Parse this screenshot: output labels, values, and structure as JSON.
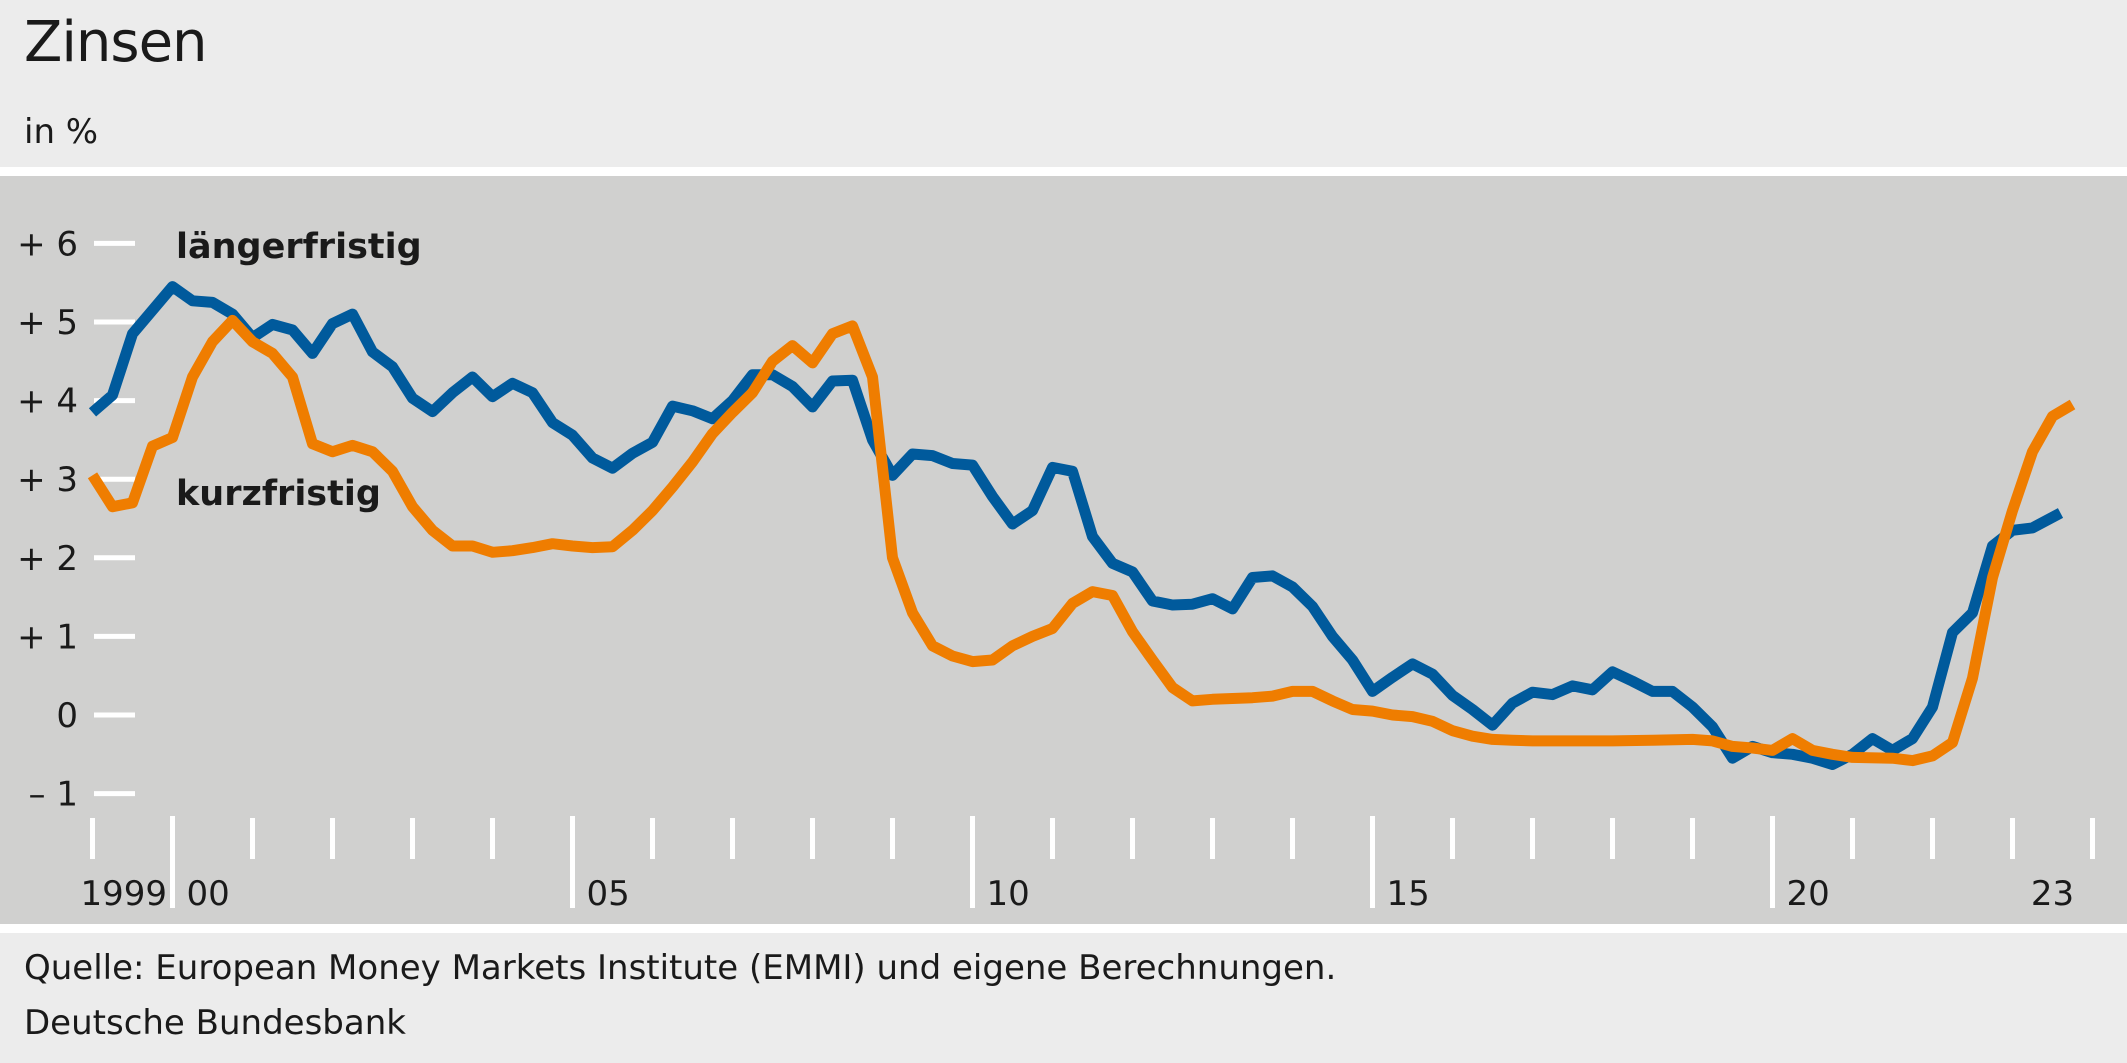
{
  "header": {
    "title": "Zinsen",
    "subtitle": "in %"
  },
  "footer": {
    "source": "Quelle: European Money Markets Institute (EMMI) und eigene Berechnungen.",
    "publisher": "Deutsche Bundesbank"
  },
  "chart_data": {
    "type": "line",
    "title": "Zinsen",
    "subtitle": "in %",
    "ylim": [
      -1,
      6
    ],
    "yticks": [
      {
        "value": 6,
        "label": "+ 6"
      },
      {
        "value": 5,
        "label": "+ 5"
      },
      {
        "value": 4,
        "label": "+ 4"
      },
      {
        "value": 3,
        "label": "+ 3"
      },
      {
        "value": 2,
        "label": "+ 2"
      },
      {
        "value": 1,
        "label": "+ 1"
      },
      {
        "value": 0,
        "label": "0"
      },
      {
        "value": -1,
        "label": "– 1"
      }
    ],
    "xlim": [
      1999.0,
      2024.0
    ],
    "xtick_labels": [
      {
        "year": 1999,
        "label": "1999"
      },
      {
        "year": 2000,
        "label": "00"
      },
      {
        "year": 2005,
        "label": "05"
      },
      {
        "year": 2010,
        "label": "10"
      },
      {
        "year": 2015,
        "label": "15"
      },
      {
        "year": 2020,
        "label": "20"
      },
      {
        "year": 2023,
        "label": "23"
      }
    ],
    "grid": false,
    "legend": "inline labels",
    "series": [
      {
        "name": "längerfristig",
        "color": "#005a9c",
        "points": [
          [
            1999.0,
            3.85
          ],
          [
            1999.25,
            4.07
          ],
          [
            1999.5,
            4.85
          ],
          [
            1999.75,
            5.15
          ],
          [
            2000.0,
            5.45
          ],
          [
            2000.25,
            5.27
          ],
          [
            2000.5,
            5.25
          ],
          [
            2000.75,
            5.1
          ],
          [
            2001.0,
            4.8
          ],
          [
            2001.25,
            4.97
          ],
          [
            2001.5,
            4.9
          ],
          [
            2001.75,
            4.6
          ],
          [
            2002.0,
            4.98
          ],
          [
            2002.25,
            5.1
          ],
          [
            2002.5,
            4.62
          ],
          [
            2002.75,
            4.43
          ],
          [
            2003.0,
            4.03
          ],
          [
            2003.25,
            3.86
          ],
          [
            2003.5,
            4.1
          ],
          [
            2003.75,
            4.3
          ],
          [
            2004.0,
            4.05
          ],
          [
            2004.25,
            4.22
          ],
          [
            2004.5,
            4.1
          ],
          [
            2004.75,
            3.72
          ],
          [
            2005.0,
            3.56
          ],
          [
            2005.25,
            3.27
          ],
          [
            2005.5,
            3.14
          ],
          [
            2005.75,
            3.33
          ],
          [
            2006.0,
            3.47
          ],
          [
            2006.25,
            3.93
          ],
          [
            2006.5,
            3.87
          ],
          [
            2006.75,
            3.77
          ],
          [
            2007.0,
            4.0
          ],
          [
            2007.25,
            4.33
          ],
          [
            2007.5,
            4.33
          ],
          [
            2007.75,
            4.18
          ],
          [
            2008.0,
            3.92
          ],
          [
            2008.25,
            4.25
          ],
          [
            2008.5,
            4.26
          ],
          [
            2008.75,
            3.5
          ],
          [
            2009.0,
            3.05
          ],
          [
            2009.25,
            3.32
          ],
          [
            2009.5,
            3.3
          ],
          [
            2009.75,
            3.2
          ],
          [
            2010.0,
            3.18
          ],
          [
            2010.25,
            2.78
          ],
          [
            2010.5,
            2.43
          ],
          [
            2010.75,
            2.6
          ],
          [
            2011.0,
            3.15
          ],
          [
            2011.25,
            3.1
          ],
          [
            2011.5,
            2.27
          ],
          [
            2011.75,
            1.93
          ],
          [
            2012.0,
            1.82
          ],
          [
            2012.25,
            1.45
          ],
          [
            2012.5,
            1.4
          ],
          [
            2012.75,
            1.41
          ],
          [
            2013.0,
            1.48
          ],
          [
            2013.25,
            1.35
          ],
          [
            2013.5,
            1.75
          ],
          [
            2013.75,
            1.77
          ],
          [
            2014.0,
            1.63
          ],
          [
            2014.25,
            1.38
          ],
          [
            2014.5,
            1.0
          ],
          [
            2014.75,
            0.7
          ],
          [
            2015.0,
            0.3
          ],
          [
            2015.25,
            0.48
          ],
          [
            2015.5,
            0.65
          ],
          [
            2015.75,
            0.52
          ],
          [
            2016.0,
            0.25
          ],
          [
            2016.25,
            0.07
          ],
          [
            2016.5,
            -0.13
          ],
          [
            2016.75,
            0.15
          ],
          [
            2017.0,
            0.29
          ],
          [
            2017.25,
            0.26
          ],
          [
            2017.5,
            0.37
          ],
          [
            2017.75,
            0.32
          ],
          [
            2018.0,
            0.55
          ],
          [
            2018.25,
            0.43
          ],
          [
            2018.5,
            0.3
          ],
          [
            2018.75,
            0.3
          ],
          [
            2019.0,
            0.1
          ],
          [
            2019.25,
            -0.15
          ],
          [
            2019.5,
            -0.55
          ],
          [
            2019.75,
            -0.4
          ],
          [
            2020.0,
            -0.48
          ],
          [
            2020.25,
            -0.5
          ],
          [
            2020.5,
            -0.55
          ],
          [
            2020.75,
            -0.63
          ],
          [
            2021.0,
            -0.5
          ],
          [
            2021.25,
            -0.3
          ],
          [
            2021.5,
            -0.45
          ],
          [
            2021.75,
            -0.3
          ],
          [
            2022.0,
            0.1
          ],
          [
            2022.25,
            1.05
          ],
          [
            2022.5,
            1.3
          ],
          [
            2022.75,
            2.15
          ],
          [
            2023.0,
            2.35
          ],
          [
            2023.25,
            2.38
          ],
          [
            2023.6,
            2.57
          ]
        ]
      },
      {
        "name": "kurzfristig",
        "color": "#ef7d00",
        "points": [
          [
            1999.0,
            3.05
          ],
          [
            1999.25,
            2.65
          ],
          [
            1999.5,
            2.7
          ],
          [
            1999.75,
            3.42
          ],
          [
            2000.0,
            3.53
          ],
          [
            2000.25,
            4.3
          ],
          [
            2000.5,
            4.75
          ],
          [
            2000.75,
            5.02
          ],
          [
            2001.0,
            4.75
          ],
          [
            2001.25,
            4.6
          ],
          [
            2001.5,
            4.3
          ],
          [
            2001.75,
            3.45
          ],
          [
            2002.0,
            3.35
          ],
          [
            2002.25,
            3.43
          ],
          [
            2002.5,
            3.35
          ],
          [
            2002.75,
            3.1
          ],
          [
            2003.0,
            2.65
          ],
          [
            2003.25,
            2.35
          ],
          [
            2003.5,
            2.15
          ],
          [
            2003.75,
            2.15
          ],
          [
            2004.0,
            2.07
          ],
          [
            2004.25,
            2.09
          ],
          [
            2004.5,
            2.13
          ],
          [
            2004.75,
            2.18
          ],
          [
            2005.0,
            2.15
          ],
          [
            2005.25,
            2.13
          ],
          [
            2005.5,
            2.14
          ],
          [
            2005.75,
            2.35
          ],
          [
            2006.0,
            2.6
          ],
          [
            2006.25,
            2.9
          ],
          [
            2006.5,
            3.22
          ],
          [
            2006.75,
            3.58
          ],
          [
            2007.0,
            3.85
          ],
          [
            2007.25,
            4.1
          ],
          [
            2007.5,
            4.5
          ],
          [
            2007.75,
            4.7
          ],
          [
            2008.0,
            4.48
          ],
          [
            2008.25,
            4.85
          ],
          [
            2008.5,
            4.95
          ],
          [
            2008.75,
            4.3
          ],
          [
            2009.0,
            2.0
          ],
          [
            2009.25,
            1.3
          ],
          [
            2009.5,
            0.88
          ],
          [
            2009.75,
            0.75
          ],
          [
            2010.0,
            0.68
          ],
          [
            2010.25,
            0.7
          ],
          [
            2010.5,
            0.88
          ],
          [
            2010.75,
            1.0
          ],
          [
            2011.0,
            1.1
          ],
          [
            2011.25,
            1.42
          ],
          [
            2011.5,
            1.57
          ],
          [
            2011.75,
            1.52
          ],
          [
            2012.0,
            1.06
          ],
          [
            2012.25,
            0.7
          ],
          [
            2012.5,
            0.35
          ],
          [
            2012.75,
            0.18
          ],
          [
            2013.0,
            0.2
          ],
          [
            2013.25,
            0.21
          ],
          [
            2013.5,
            0.22
          ],
          [
            2013.75,
            0.24
          ],
          [
            2014.0,
            0.3
          ],
          [
            2014.25,
            0.3
          ],
          [
            2014.5,
            0.18
          ],
          [
            2014.75,
            0.07
          ],
          [
            2015.0,
            0.05
          ],
          [
            2015.25,
            0.0
          ],
          [
            2015.5,
            -0.02
          ],
          [
            2015.75,
            -0.08
          ],
          [
            2016.0,
            -0.2
          ],
          [
            2016.25,
            -0.27
          ],
          [
            2016.5,
            -0.31
          ],
          [
            2016.75,
            -0.32
          ],
          [
            2017.0,
            -0.33
          ],
          [
            2017.5,
            -0.33
          ],
          [
            2018.0,
            -0.33
          ],
          [
            2018.5,
            -0.32
          ],
          [
            2019.0,
            -0.31
          ],
          [
            2019.25,
            -0.33
          ],
          [
            2019.5,
            -0.4
          ],
          [
            2019.75,
            -0.42
          ],
          [
            2020.0,
            -0.45
          ],
          [
            2020.25,
            -0.3
          ],
          [
            2020.5,
            -0.45
          ],
          [
            2020.75,
            -0.5
          ],
          [
            2021.0,
            -0.54
          ],
          [
            2021.5,
            -0.55
          ],
          [
            2021.75,
            -0.58
          ],
          [
            2022.0,
            -0.52
          ],
          [
            2022.25,
            -0.35
          ],
          [
            2022.5,
            0.47
          ],
          [
            2022.75,
            1.75
          ],
          [
            2023.0,
            2.6
          ],
          [
            2023.25,
            3.35
          ],
          [
            2023.5,
            3.8
          ],
          [
            2023.75,
            3.95
          ]
        ]
      }
    ]
  }
}
